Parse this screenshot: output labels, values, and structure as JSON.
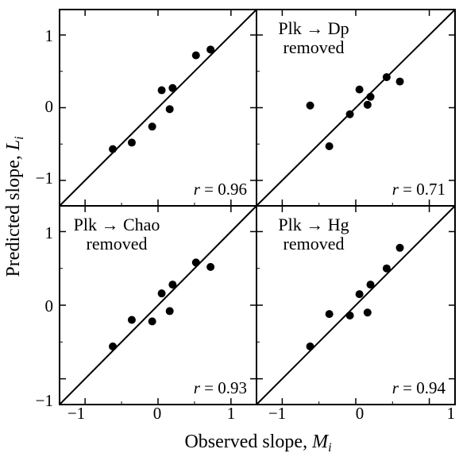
{
  "figure": {
    "ylabel_text": "Predicted slope, ",
    "ylabel_var": "L",
    "ylabel_sub": "i",
    "xlabel_text": "Observed slope, ",
    "xlabel_var": "M",
    "xlabel_sub": "i",
    "x_tick_labels": [
      "−1",
      "0",
      "1"
    ],
    "y_tick_labels": [
      "1",
      "0",
      "−1"
    ]
  },
  "chart_data": [
    {
      "type": "scatter",
      "panel": "top-left",
      "annotation": [],
      "r_label": "r",
      "r_value": "0.96",
      "xlim": [
        -1.35,
        1.35
      ],
      "ylim": [
        -1.35,
        1.35
      ],
      "fit_line": "identity",
      "points": [
        [
          -0.62,
          -0.57
        ],
        [
          -0.36,
          -0.48
        ],
        [
          -0.08,
          -0.26
        ],
        [
          0.05,
          0.24
        ],
        [
          0.2,
          0.27
        ],
        [
          0.16,
          -0.02
        ],
        [
          0.52,
          0.72
        ],
        [
          0.72,
          0.8
        ]
      ]
    },
    {
      "type": "scatter",
      "panel": "top-right",
      "annotation": [
        "Plk → Dp",
        "removed"
      ],
      "r_label": "r",
      "r_value": "0.71",
      "xlim": [
        -1.35,
        1.35
      ],
      "ylim": [
        -1.35,
        1.35
      ],
      "fit_line": "identity",
      "points": [
        [
          -0.62,
          0.03
        ],
        [
          -0.36,
          -0.53
        ],
        [
          -0.08,
          -0.09
        ],
        [
          0.05,
          0.25
        ],
        [
          0.2,
          0.15
        ],
        [
          0.16,
          0.04
        ],
        [
          0.42,
          0.42
        ],
        [
          0.6,
          0.36
        ]
      ]
    },
    {
      "type": "scatter",
      "panel": "bottom-left",
      "annotation": [
        "Plk → Chao",
        "removed"
      ],
      "r_label": "r",
      "r_value": "0.93",
      "xlim": [
        -1.35,
        1.35
      ],
      "ylim": [
        -1.35,
        1.35
      ],
      "fit_line": "identity",
      "points": [
        [
          -0.62,
          -0.56
        ],
        [
          -0.36,
          -0.2
        ],
        [
          -0.08,
          -0.22
        ],
        [
          0.05,
          0.16
        ],
        [
          0.2,
          0.28
        ],
        [
          0.16,
          -0.08
        ],
        [
          0.52,
          0.58
        ],
        [
          0.72,
          0.52
        ]
      ]
    },
    {
      "type": "scatter",
      "panel": "bottom-right",
      "annotation": [
        "Plk → Hg",
        "removed"
      ],
      "r_label": "r",
      "r_value": "0.94",
      "xlim": [
        -1.35,
        1.35
      ],
      "ylim": [
        -1.35,
        1.35
      ],
      "fit_line": "identity",
      "points": [
        [
          -0.62,
          -0.56
        ],
        [
          -0.36,
          -0.12
        ],
        [
          -0.08,
          -0.14
        ],
        [
          0.05,
          0.15
        ],
        [
          0.2,
          0.28
        ],
        [
          0.16,
          -0.1
        ],
        [
          0.42,
          0.5
        ],
        [
          0.6,
          0.78
        ]
      ]
    }
  ]
}
